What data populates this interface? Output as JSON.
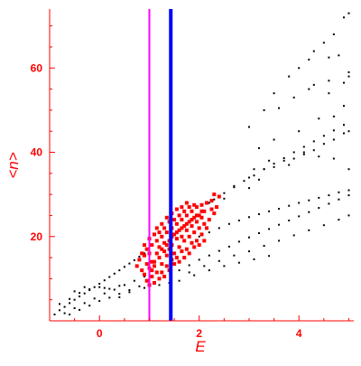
{
  "chart_data": {
    "type": "scatter",
    "title": "",
    "xlabel": "E",
    "ylabel": "<n>",
    "xlim": [
      -1.0,
      5.1
    ],
    "ylim": [
      0,
      74
    ],
    "x_ticks": [
      0,
      2,
      4
    ],
    "y_ticks": [
      20,
      40,
      60
    ],
    "x_tick_labels": [
      "0",
      "2",
      "4"
    ],
    "y_tick_labels": [
      "20",
      "40",
      "60"
    ],
    "grid": false,
    "colors": {
      "axis": "#ff0000",
      "labels": "#ff0000",
      "background_points": "#000000",
      "highlighted_points": "#ff0000",
      "line_magenta": "#ff00ff",
      "line_blue": "#0000ff"
    },
    "vertical_lines": [
      {
        "x": 1.0,
        "color": "#ff00ff"
      },
      {
        "x": 1.43,
        "color": "#0000ff"
      }
    ],
    "series": [
      {
        "color": "#000000",
        "points": [
          [
            -0.9,
            1.5
          ],
          [
            -0.8,
            2.5
          ],
          [
            -0.7,
            3.3
          ],
          [
            -0.6,
            4.2
          ],
          [
            -0.5,
            5.0
          ],
          [
            -0.4,
            5.8
          ],
          [
            -0.3,
            6.5
          ],
          [
            -0.2,
            7.3
          ],
          [
            -0.1,
            8.0
          ],
          [
            0.0,
            8.8
          ],
          [
            0.1,
            9.6
          ],
          [
            0.2,
            10.4
          ],
          [
            0.3,
            11.2
          ],
          [
            0.4,
            12.0
          ],
          [
            0.5,
            12.8
          ],
          [
            0.6,
            13.6
          ],
          [
            0.7,
            14.4
          ],
          [
            0.8,
            15.2
          ],
          [
            0.9,
            16.0
          ],
          [
            -0.7,
            1.8
          ],
          [
            -0.5,
            3.0
          ],
          [
            -0.3,
            4.2
          ],
          [
            -0.1,
            5.3
          ],
          [
            0.1,
            6.5
          ],
          [
            0.3,
            7.4
          ],
          [
            0.5,
            8.5
          ],
          [
            0.7,
            9.5
          ],
          [
            0.9,
            10.5
          ],
          [
            -0.6,
            1.5
          ],
          [
            -0.4,
            2.6
          ],
          [
            -0.2,
            3.6
          ],
          [
            0.0,
            4.7
          ],
          [
            0.2,
            5.5
          ],
          [
            0.4,
            6.4
          ],
          [
            0.6,
            7.3
          ],
          [
            0.8,
            8.2
          ],
          [
            -0.8,
            4.0
          ],
          [
            -0.6,
            5.2
          ],
          [
            -0.4,
            6.6
          ],
          [
            -0.2,
            7.5
          ],
          [
            0.0,
            8.0
          ],
          [
            0.2,
            7.6
          ],
          [
            0.4,
            8.3
          ],
          [
            -0.5,
            7.0
          ],
          [
            -0.3,
            8.0
          ],
          [
            0.1,
            7.8
          ],
          [
            1.6,
            12.0
          ],
          [
            1.8,
            13.2
          ],
          [
            2.0,
            14.5
          ],
          [
            2.2,
            15.5
          ],
          [
            2.4,
            16.6
          ],
          [
            2.6,
            17.6
          ],
          [
            2.8,
            18.8
          ],
          [
            3.0,
            19.8
          ],
          [
            3.2,
            20.8
          ],
          [
            3.4,
            21.8
          ],
          [
            3.6,
            22.8
          ],
          [
            3.8,
            23.8
          ],
          [
            4.0,
            24.8
          ],
          [
            4.2,
            25.8
          ],
          [
            4.4,
            26.8
          ],
          [
            4.6,
            27.8
          ],
          [
            4.8,
            28.8
          ],
          [
            5.0,
            29.8
          ],
          [
            1.8,
            11.5
          ],
          [
            2.1,
            13.0
          ],
          [
            2.4,
            14.2
          ],
          [
            2.7,
            15.5
          ],
          [
            3.0,
            16.5
          ],
          [
            3.3,
            17.8
          ],
          [
            3.6,
            19.0
          ],
          [
            3.9,
            20.3
          ],
          [
            4.2,
            21.5
          ],
          [
            4.5,
            22.7
          ],
          [
            4.8,
            24.0
          ],
          [
            5.0,
            25.0
          ],
          [
            1.6,
            9.5
          ],
          [
            1.9,
            10.8
          ],
          [
            2.2,
            12.0
          ],
          [
            2.5,
            13.0
          ],
          [
            2.8,
            13.8
          ],
          [
            3.1,
            14.6
          ],
          [
            3.4,
            15.4
          ],
          [
            2.0,
            20.0
          ],
          [
            2.2,
            21.0
          ],
          [
            2.4,
            22.0
          ],
          [
            2.6,
            23.0
          ],
          [
            2.8,
            23.8
          ],
          [
            3.0,
            24.6
          ],
          [
            3.2,
            25.3
          ],
          [
            3.4,
            26.0
          ],
          [
            3.6,
            26.6
          ],
          [
            3.8,
            27.3
          ],
          [
            4.0,
            28.0
          ],
          [
            4.2,
            28.6
          ],
          [
            4.4,
            29.2
          ],
          [
            4.6,
            29.8
          ],
          [
            4.8,
            30.5
          ],
          [
            5.0,
            31.0
          ],
          [
            2.2,
            28.0
          ],
          [
            2.5,
            29.0
          ],
          [
            2.7,
            32.0
          ],
          [
            3.0,
            31.5
          ],
          [
            3.0,
            34.0
          ],
          [
            3.2,
            33.5
          ],
          [
            3.3,
            36.0
          ],
          [
            3.5,
            36.5
          ],
          [
            3.7,
            38.0
          ],
          [
            3.9,
            38.5
          ],
          [
            4.1,
            40.0
          ],
          [
            4.3,
            40.5
          ],
          [
            4.5,
            42.0
          ],
          [
            4.7,
            43.0
          ],
          [
            4.9,
            44.5
          ],
          [
            5.0,
            45.0
          ],
          [
            2.3,
            28.8
          ],
          [
            2.5,
            30.3
          ],
          [
            2.7,
            31.7
          ],
          [
            2.9,
            33.2
          ],
          [
            3.1,
            34.5
          ],
          [
            3.3,
            36.0
          ],
          [
            3.5,
            37.3
          ],
          [
            3.7,
            38.6
          ],
          [
            3.9,
            40.0
          ],
          [
            4.1,
            41.3
          ],
          [
            4.3,
            42.6
          ],
          [
            4.5,
            43.9
          ],
          [
            4.7,
            45.2
          ],
          [
            4.9,
            46.5
          ],
          [
            3.0,
            46.0
          ],
          [
            3.3,
            50.0
          ],
          [
            3.5,
            54.0
          ],
          [
            3.8,
            58.0
          ],
          [
            4.0,
            60.0
          ],
          [
            4.2,
            62.0
          ],
          [
            4.3,
            64.0
          ],
          [
            4.5,
            66.0
          ],
          [
            4.7,
            68.0
          ],
          [
            4.9,
            72.0
          ],
          [
            5.0,
            73.0
          ],
          [
            4.6,
            62.5
          ],
          [
            4.8,
            63.0
          ],
          [
            5.0,
            59.0
          ],
          [
            4.3,
            56.0
          ],
          [
            4.6,
            57.0
          ],
          [
            4.9,
            56.5
          ],
          [
            3.6,
            50.5
          ],
          [
            3.9,
            53.0
          ],
          [
            4.2,
            55.0
          ],
          [
            4.6,
            54.0
          ],
          [
            5.0,
            58.0
          ],
          [
            3.2,
            41.0
          ],
          [
            3.5,
            43.0
          ],
          [
            4.0,
            45.0
          ],
          [
            4.4,
            48.0
          ],
          [
            4.7,
            48.5
          ],
          [
            4.9,
            51.0
          ],
          [
            3.1,
            36.0
          ],
          [
            3.4,
            38.0
          ],
          [
            3.8,
            37.0
          ],
          [
            4.1,
            39.5
          ],
          [
            4.4,
            39.0
          ],
          [
            4.7,
            38.5
          ],
          [
            5.0,
            36.0
          ],
          [
            1.4,
            9.0
          ],
          [
            1.2,
            8.5
          ],
          [
            0.9,
            7.8
          ],
          [
            0.6,
            6.8
          ],
          [
            0.4,
            5.6
          ]
        ]
      },
      {
        "color": "#ff0000",
        "points": [
          [
            0.75,
            13.0
          ],
          [
            0.8,
            14.5
          ],
          [
            0.85,
            12.0
          ],
          [
            0.9,
            15.5
          ],
          [
            0.95,
            17.0
          ],
          [
            1.0,
            16.0
          ],
          [
            1.05,
            18.0
          ],
          [
            1.1,
            14.0
          ],
          [
            1.15,
            19.0
          ],
          [
            1.2,
            17.5
          ],
          [
            1.25,
            20.0
          ],
          [
            1.3,
            16.5
          ],
          [
            1.35,
            21.0
          ],
          [
            1.4,
            19.0
          ],
          [
            1.45,
            22.0
          ],
          [
            1.5,
            20.5
          ],
          [
            1.55,
            23.0
          ],
          [
            1.6,
            21.5
          ],
          [
            1.65,
            24.0
          ],
          [
            1.7,
            22.5
          ],
          [
            1.75,
            25.0
          ],
          [
            1.8,
            23.5
          ],
          [
            1.85,
            26.0
          ],
          [
            1.9,
            24.5
          ],
          [
            1.95,
            27.0
          ],
          [
            2.0,
            25.0
          ],
          [
            2.05,
            27.5
          ],
          [
            2.1,
            26.0
          ],
          [
            2.15,
            28.0
          ],
          [
            2.2,
            24.0
          ],
          [
            2.25,
            26.5
          ],
          [
            2.3,
            25.5
          ],
          [
            0.9,
            11.0
          ],
          [
            0.95,
            9.5
          ],
          [
            1.0,
            12.5
          ],
          [
            1.05,
            10.5
          ],
          [
            1.1,
            13.0
          ],
          [
            1.15,
            11.5
          ],
          [
            1.2,
            15.0
          ],
          [
            1.25,
            13.5
          ],
          [
            1.3,
            18.5
          ],
          [
            1.35,
            15.5
          ],
          [
            1.4,
            17.0
          ],
          [
            1.45,
            18.0
          ],
          [
            1.5,
            16.0
          ],
          [
            1.55,
            19.5
          ],
          [
            1.6,
            17.5
          ],
          [
            1.65,
            20.0
          ],
          [
            1.7,
            19.0
          ],
          [
            1.75,
            21.5
          ],
          [
            1.8,
            20.0
          ],
          [
            1.85,
            22.5
          ],
          [
            1.9,
            21.0
          ],
          [
            1.95,
            23.5
          ],
          [
            2.0,
            22.0
          ],
          [
            2.05,
            24.5
          ],
          [
            2.1,
            23.0
          ],
          [
            2.15,
            22.0
          ],
          [
            0.85,
            16.0
          ],
          [
            0.9,
            18.0
          ],
          [
            1.0,
            19.5
          ],
          [
            1.1,
            20.5
          ],
          [
            1.2,
            21.0
          ],
          [
            1.3,
            22.0
          ],
          [
            1.4,
            23.5
          ],
          [
            1.5,
            24.0
          ],
          [
            1.6,
            25.0
          ],
          [
            1.7,
            26.0
          ],
          [
            1.8,
            27.0
          ],
          [
            1.9,
            27.5
          ],
          [
            1.25,
            11.5
          ],
          [
            1.35,
            13.0
          ],
          [
            1.45,
            14.5
          ],
          [
            1.55,
            15.0
          ],
          [
            1.65,
            16.5
          ],
          [
            1.75,
            17.0
          ],
          [
            1.85,
            18.5
          ],
          [
            1.95,
            19.0
          ],
          [
            2.05,
            20.5
          ],
          [
            1.05,
            14.0
          ],
          [
            1.15,
            16.0
          ],
          [
            1.25,
            17.0
          ],
          [
            1.35,
            18.0
          ],
          [
            1.45,
            20.0
          ],
          [
            1.55,
            21.0
          ],
          [
            1.65,
            22.0
          ],
          [
            1.75,
            23.0
          ],
          [
            1.85,
            24.0
          ],
          [
            1.95,
            25.0
          ],
          [
            2.05,
            26.0
          ],
          [
            0.95,
            13.5
          ],
          [
            1.05,
            12.0
          ],
          [
            1.15,
            22.0
          ],
          [
            1.25,
            23.0
          ],
          [
            1.35,
            24.5
          ],
          [
            1.45,
            25.5
          ],
          [
            1.55,
            26.5
          ],
          [
            1.65,
            27.0
          ],
          [
            1.75,
            28.0
          ],
          [
            2.25,
            28.5
          ],
          [
            2.35,
            27.0
          ],
          [
            2.4,
            29.5
          ],
          [
            2.3,
            30.0
          ],
          [
            1.0,
            8.5
          ],
          [
            1.1,
            9.0
          ],
          [
            1.2,
            10.0
          ],
          [
            1.3,
            10.5
          ],
          [
            1.4,
            12.0
          ],
          [
            1.5,
            13.5
          ],
          [
            1.6,
            14.0
          ],
          [
            1.7,
            15.0
          ],
          [
            1.8,
            16.0
          ],
          [
            1.9,
            17.5
          ],
          [
            2.0,
            18.0
          ],
          [
            2.1,
            19.0
          ]
        ]
      }
    ]
  }
}
